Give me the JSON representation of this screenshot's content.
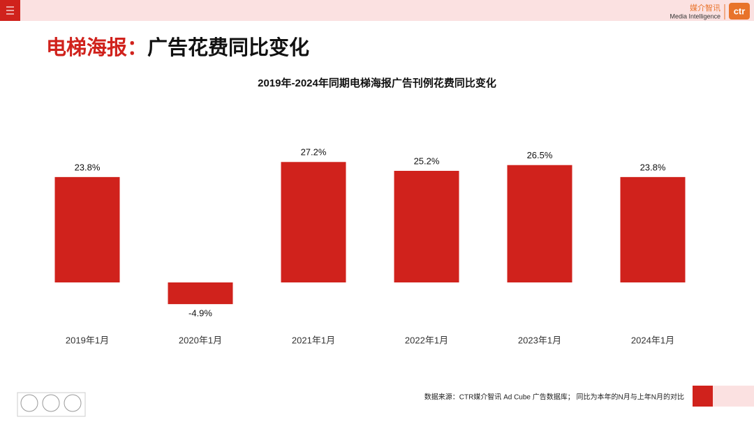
{
  "header": {
    "title_highlight": "电梯海报：",
    "title": "广告花费同比变化",
    "logo_cn": "媒介智讯",
    "logo_en": "Media Intelligence",
    "logo_mark": "ctr"
  },
  "footer": {
    "source": "数据来源：CTR媒介智讯 Ad Cube 广告数据库； 同比为本年的N月与上年N月的对比"
  },
  "chart_data": {
    "type": "bar",
    "title": "2019年-2024年同期电梯海报广告刊例花费同比变化",
    "categories": [
      "2019年1月",
      "2020年1月",
      "2021年1月",
      "2022年1月",
      "2023年1月",
      "2024年1月"
    ],
    "values": [
      23.8,
      -4.9,
      27.2,
      25.2,
      26.5,
      23.8
    ],
    "value_labels": [
      "23.8%",
      "-4.9%",
      "27.2%",
      "25.2%",
      "26.5%",
      "23.8%"
    ],
    "color": "#d0221c"
  }
}
